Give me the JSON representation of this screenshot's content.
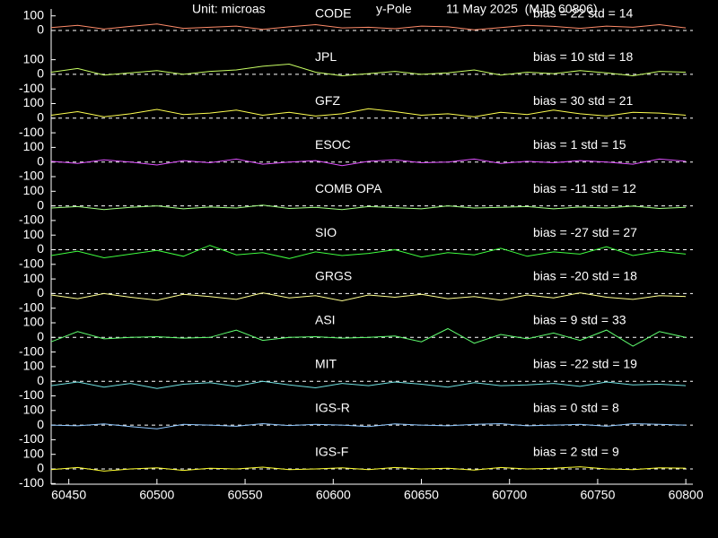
{
  "header": {
    "unit": "Unit: microas",
    "component": "y-Pole",
    "date": "11 May 2025  (MJD 60806)"
  },
  "chart_data": [
    {
      "type": "line",
      "label": "CODE",
      "stats": "bias = 22  std = 14",
      "color": "#ff8c6a",
      "xlim": [
        60440,
        60804
      ],
      "ylim": [
        -150,
        150
      ],
      "yticks": [
        0,
        100
      ],
      "zero_line": true,
      "x": [
        60440,
        60455,
        60470,
        60485,
        60500,
        60515,
        60530,
        60545,
        60560,
        60575,
        60590,
        60605,
        60620,
        60635,
        60650,
        60665,
        60680,
        60695,
        60710,
        60725,
        60740,
        60755,
        60770,
        60785,
        60800
      ],
      "values": [
        20,
        35,
        10,
        28,
        45,
        15,
        22,
        30,
        8,
        25,
        40,
        18,
        22,
        12,
        30,
        25,
        5,
        20,
        35,
        28,
        15,
        30,
        22,
        40,
        18
      ]
    },
    {
      "type": "line",
      "label": "JPL",
      "stats": "bias = 10  std = 18",
      "color": "#c8ff64",
      "xlim": [
        60440,
        60804
      ],
      "ylim": [
        -150,
        150
      ],
      "yticks": [
        -100,
        0,
        100
      ],
      "zero_line": true,
      "x": [
        60440,
        60455,
        60470,
        60485,
        60500,
        60515,
        60530,
        60545,
        60560,
        60575,
        60590,
        60605,
        60620,
        60635,
        60650,
        60665,
        60680,
        60695,
        60710,
        60725,
        60740,
        60755,
        60770,
        60785,
        60800
      ],
      "values": [
        15,
        40,
        -5,
        10,
        25,
        0,
        20,
        30,
        55,
        70,
        15,
        -10,
        5,
        20,
        0,
        10,
        30,
        -5,
        15,
        5,
        25,
        10,
        -10,
        20,
        15
      ]
    },
    {
      "type": "line",
      "label": "GFZ",
      "stats": "bias = 30  std = 21",
      "color": "#ffff50",
      "xlim": [
        60440,
        60804
      ],
      "ylim": [
        -150,
        150
      ],
      "yticks": [
        -100,
        0,
        100
      ],
      "zero_line": true,
      "x": [
        60440,
        60455,
        60470,
        60485,
        60500,
        60515,
        60530,
        60545,
        60560,
        60575,
        60590,
        60605,
        60620,
        60635,
        60650,
        60665,
        60680,
        60695,
        60710,
        60725,
        60740,
        60755,
        60770,
        60785,
        60800
      ],
      "values": [
        20,
        45,
        10,
        30,
        60,
        25,
        35,
        55,
        20,
        40,
        15,
        30,
        65,
        45,
        20,
        30,
        10,
        40,
        25,
        55,
        30,
        15,
        40,
        35,
        20
      ]
    },
    {
      "type": "line",
      "label": "ESOC",
      "stats": "bias = 1  std = 15",
      "color": "#e050ff",
      "xlim": [
        60440,
        60804
      ],
      "ylim": [
        -150,
        150
      ],
      "yticks": [
        -100,
        0,
        100
      ],
      "zero_line": true,
      "x": [
        60440,
        60455,
        60470,
        60485,
        60500,
        60515,
        60530,
        60545,
        60560,
        60575,
        60590,
        60605,
        60620,
        60635,
        60650,
        60665,
        60680,
        60695,
        60710,
        60725,
        60740,
        60755,
        60770,
        60785,
        60800
      ],
      "values": [
        5,
        -10,
        15,
        0,
        -20,
        10,
        -5,
        20,
        -15,
        0,
        10,
        -25,
        5,
        15,
        -5,
        0,
        20,
        -10,
        5,
        -5,
        10,
        0,
        -15,
        20,
        5
      ]
    },
    {
      "type": "line",
      "label": "COMB OPA",
      "stats": "bias = -11  std = 12",
      "color": "#a0ff80",
      "xlim": [
        60440,
        60804
      ],
      "ylim": [
        -150,
        150
      ],
      "yticks": [
        -100,
        0,
        100
      ],
      "zero_line": true,
      "x": [
        60440,
        60455,
        60470,
        60485,
        60500,
        60515,
        60530,
        60545,
        60560,
        60575,
        60590,
        60605,
        60620,
        60635,
        60650,
        60665,
        60680,
        60695,
        60710,
        60725,
        60740,
        60755,
        60770,
        60785,
        60800
      ],
      "values": [
        -15,
        -5,
        -25,
        -10,
        0,
        -20,
        -8,
        -15,
        5,
        -18,
        -10,
        -25,
        -5,
        -12,
        -20,
        0,
        -15,
        -10,
        -5,
        -20,
        -8,
        -15,
        -2,
        -18,
        -10
      ]
    },
    {
      "type": "line",
      "label": "SIO",
      "stats": "bias = -27  std = 27",
      "color": "#40ff40",
      "xlim": [
        60440,
        60804
      ],
      "ylim": [
        -150,
        150
      ],
      "yticks": [
        -100,
        0,
        100
      ],
      "zero_line": true,
      "x": [
        60440,
        60455,
        60470,
        60485,
        60500,
        60515,
        60530,
        60545,
        60560,
        60575,
        60590,
        60605,
        60620,
        60635,
        60650,
        60665,
        60680,
        60695,
        60710,
        60725,
        60740,
        60755,
        60770,
        60785,
        60800
      ],
      "values": [
        -40,
        -10,
        -55,
        -30,
        -5,
        -45,
        30,
        -35,
        -20,
        -60,
        -15,
        -40,
        -25,
        0,
        -50,
        -20,
        -35,
        10,
        -45,
        -15,
        -30,
        20,
        -40,
        -10,
        -30
      ]
    },
    {
      "type": "line",
      "label": "GRGS",
      "stats": "bias = -20  std = 18",
      "color": "#ffff90",
      "xlim": [
        60440,
        60804
      ],
      "ylim": [
        -150,
        150
      ],
      "yticks": [
        -100,
        0,
        100
      ],
      "zero_line": true,
      "x": [
        60440,
        60455,
        60470,
        60485,
        60500,
        60515,
        60530,
        60545,
        60560,
        60575,
        60590,
        60605,
        60620,
        60635,
        60650,
        60665,
        60680,
        60695,
        60710,
        60725,
        60740,
        60755,
        60770,
        60785,
        60800
      ],
      "values": [
        -10,
        -35,
        0,
        -25,
        -45,
        -5,
        -20,
        -40,
        5,
        -30,
        -15,
        -50,
        -10,
        -25,
        -5,
        -35,
        -20,
        -45,
        -10,
        -30,
        5,
        -25,
        -40,
        -15,
        -20
      ]
    },
    {
      "type": "line",
      "label": "ASI",
      "stats": "bias = 9  std = 33",
      "color": "#60ff70",
      "xlim": [
        60440,
        60804
      ],
      "ylim": [
        -150,
        150
      ],
      "yticks": [
        -100,
        0,
        100
      ],
      "zero_line": true,
      "x": [
        60440,
        60455,
        60470,
        60485,
        60500,
        60515,
        60530,
        60545,
        60560,
        60575,
        60590,
        60605,
        60620,
        60635,
        60650,
        60665,
        60680,
        60695,
        60710,
        60725,
        60740,
        60755,
        60770,
        60785,
        60800
      ],
      "values": [
        -30,
        40,
        -10,
        0,
        5,
        -5,
        0,
        50,
        -20,
        0,
        5,
        -5,
        0,
        10,
        -30,
        60,
        -40,
        20,
        -10,
        30,
        -20,
        50,
        -60,
        40,
        0
      ]
    },
    {
      "type": "line",
      "label": "MIT",
      "stats": "bias = -22  std = 19",
      "color": "#70e0e0",
      "xlim": [
        60440,
        60804
      ],
      "ylim": [
        -150,
        150
      ],
      "yticks": [
        -100,
        0,
        100
      ],
      "zero_line": true,
      "x": [
        60440,
        60455,
        60470,
        60485,
        60500,
        60515,
        60530,
        60545,
        60560,
        60575,
        60590,
        60605,
        60620,
        60635,
        60650,
        60665,
        60680,
        60695,
        60710,
        60725,
        60740,
        60755,
        60770,
        60785,
        60800
      ],
      "values": [
        -30,
        -5,
        -40,
        -15,
        -50,
        -20,
        -10,
        -35,
        0,
        -25,
        -45,
        -15,
        -30,
        -5,
        -20,
        -40,
        -10,
        -30,
        -25,
        -15,
        -35,
        -5,
        -25,
        -20,
        -30
      ]
    },
    {
      "type": "line",
      "label": "IGS-R",
      "stats": "bias = 0  std = 8",
      "color": "#90c8ff",
      "xlim": [
        60440,
        60804
      ],
      "ylim": [
        -150,
        150
      ],
      "yticks": [
        -100,
        0,
        100
      ],
      "zero_line": true,
      "x": [
        60440,
        60455,
        60470,
        60485,
        60500,
        60515,
        60530,
        60545,
        60560,
        60575,
        60590,
        60605,
        60620,
        60635,
        60650,
        60665,
        60680,
        60695,
        60710,
        60725,
        60740,
        60755,
        60770,
        60785,
        60800
      ],
      "values": [
        0,
        -5,
        8,
        -10,
        -25,
        5,
        0,
        -8,
        10,
        -3,
        5,
        0,
        -10,
        8,
        0,
        -5,
        5,
        10,
        -5,
        0,
        5,
        -8,
        10,
        5,
        0
      ]
    },
    {
      "type": "line",
      "label": "IGS-F",
      "stats": "bias = 2  std = 9",
      "color": "#ffff30",
      "xlim": [
        60440,
        60804
      ],
      "ylim": [
        -150,
        150
      ],
      "yticks": [
        -100,
        0,
        100
      ],
      "zero_line": true,
      "xticks": [
        60450,
        60500,
        60550,
        60600,
        60650,
        60700,
        60750,
        60800
      ],
      "x": [
        60440,
        60455,
        60470,
        60485,
        60500,
        60515,
        60530,
        60545,
        60560,
        60575,
        60590,
        60605,
        60620,
        60635,
        60650,
        60665,
        60680,
        60695,
        60710,
        60725,
        60740,
        60755,
        60770,
        60785,
        60800
      ],
      "values": [
        -5,
        10,
        -15,
        0,
        8,
        -10,
        5,
        0,
        12,
        -5,
        0,
        8,
        -5,
        10,
        0,
        5,
        -8,
        10,
        0,
        5,
        15,
        0,
        -5,
        8,
        5
      ]
    }
  ]
}
